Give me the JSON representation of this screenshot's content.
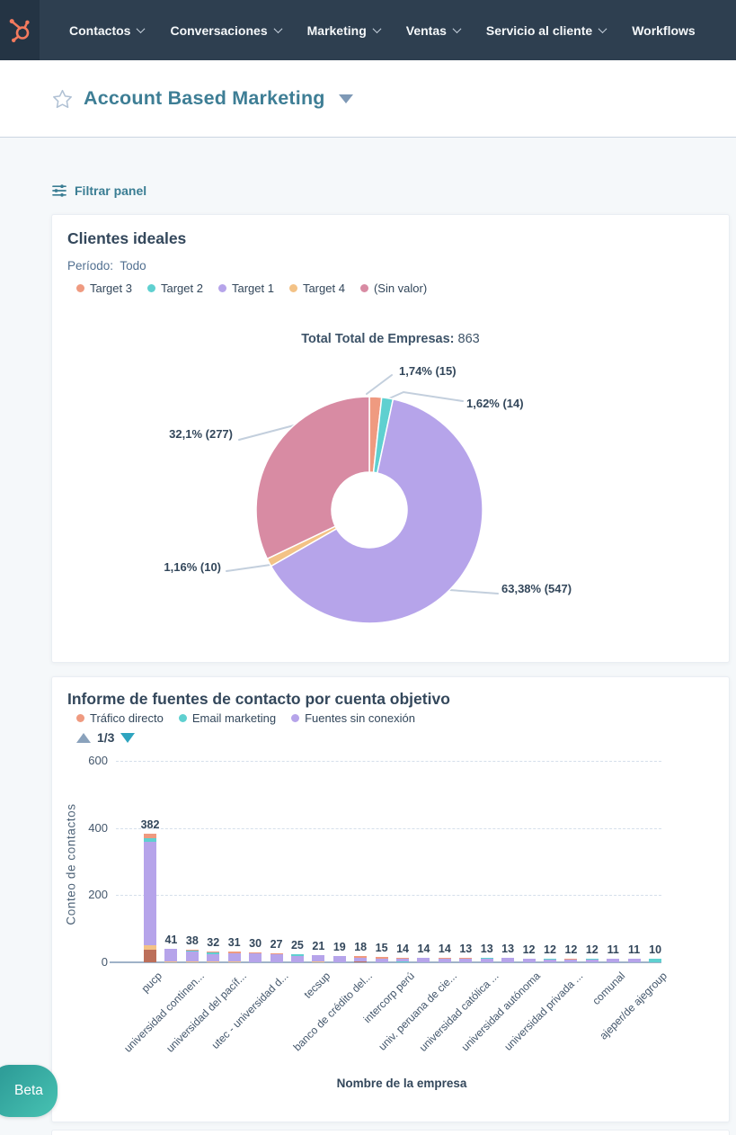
{
  "navbar": {
    "items": [
      {
        "label": "Contactos",
        "has_chevron": true
      },
      {
        "label": "Conversaciones",
        "has_chevron": true
      },
      {
        "label": "Marketing",
        "has_chevron": true
      },
      {
        "label": "Ventas",
        "has_chevron": true
      },
      {
        "label": "Servicio al cliente",
        "has_chevron": true
      },
      {
        "label": "Workflows",
        "has_chevron": false
      }
    ]
  },
  "header": {
    "title": "Account Based Marketing"
  },
  "filter": {
    "label": "Filtrar panel"
  },
  "beta_badge": "Beta",
  "icons": {
    "logo": "hubspot-sprocket",
    "favorite": "star-outline",
    "title_caret": "caret-down",
    "filter": "sliders",
    "nav_chevron": "chevron-down",
    "page_up": "triangle-up",
    "page_down": "triangle-down"
  },
  "colors": {
    "navbar_bg": "#2e3f50",
    "logo_orange": "#f47a5e",
    "page_bg": "#f5f8fa",
    "heading_teal": "#3e7e95",
    "text_navy": "#33475b",
    "beta_teal": "#35afa6"
  },
  "palette": {
    "salmon": "#ef9a80",
    "teal": "#5fd0d0",
    "purple": "#b6a4ea",
    "yellow": "#f3c286",
    "pink": "#d88ba3",
    "rust": "#bc6f5a"
  },
  "chart_data": [
    {
      "type": "pie",
      "subtype": "donut",
      "title": "Clientes ideales",
      "period_label": "Período:",
      "period_value": "Todo",
      "total_label": "Total Total de Empresas:",
      "total_value": "863",
      "legend_position": "top",
      "slices": [
        {
          "name": "Target 3",
          "value": 15,
          "pct": 1.74,
          "callout": "1,74% (15)",
          "color": "#ef9a80"
        },
        {
          "name": "Target 2",
          "value": 14,
          "pct": 1.62,
          "callout": "1,62% (14)",
          "color": "#5fd0d0"
        },
        {
          "name": "Target 1",
          "value": 547,
          "pct": 63.38,
          "callout": "63,38% (547)",
          "color": "#b6a4ea"
        },
        {
          "name": "Target 4",
          "value": 10,
          "pct": 1.16,
          "callout": "1,16% (10)",
          "color": "#f3c286"
        },
        {
          "name": "(Sin valor)",
          "value": 277,
          "pct": 32.1,
          "callout": "32,1% (277)",
          "color": "#d88ba3"
        }
      ]
    },
    {
      "type": "bar",
      "stacked": true,
      "title": "Informe de fuentes de contacto por cuenta objetivo",
      "xlabel": "Nombre de la empresa",
      "ylabel": "Conteo de contactos",
      "ylim": [
        0,
        600
      ],
      "yticks": [
        0,
        200,
        400,
        600
      ],
      "grid": "dashed-horizontal",
      "pagination": "1/3",
      "legend": [
        {
          "name": "Tráfico directo",
          "color": "#ef9a80"
        },
        {
          "name": "Email marketing",
          "color": "#5fd0d0"
        },
        {
          "name": "Fuentes sin conexión",
          "color": "#b6a4ea"
        }
      ],
      "x_tick_every": 2,
      "x_tick_labels": [
        "pucp",
        "universidad continen...",
        "universidad del pacíf...",
        "utec - universidad d...",
        "tecsup",
        "banco de crédito del...",
        "intercorp perú",
        "univ. peruana de cie...",
        "universidad católica ...",
        "universidad autónoma",
        "universidad privada ...",
        "comunal",
        "ajeper/de ajegroup"
      ],
      "bars": [
        {
          "total": 382,
          "segments": [
            [
              "rust",
              38
            ],
            [
              "yellow",
              12
            ],
            [
              "purple",
              310
            ],
            [
              "teal",
              10
            ],
            [
              "salmon",
              12
            ]
          ]
        },
        {
          "total": 41,
          "segments": [
            [
              "yellow",
              2
            ],
            [
              "purple",
              37
            ],
            [
              "salmon",
              2
            ]
          ]
        },
        {
          "total": 38,
          "segments": [
            [
              "yellow",
              4
            ],
            [
              "purple",
              27
            ],
            [
              "teal",
              4
            ],
            [
              "salmon",
              3
            ]
          ]
        },
        {
          "total": 32,
          "segments": [
            [
              "yellow",
              3
            ],
            [
              "purple",
              22
            ],
            [
              "teal",
              4
            ],
            [
              "salmon",
              3
            ]
          ]
        },
        {
          "total": 31,
          "segments": [
            [
              "yellow",
              3
            ],
            [
              "purple",
              24
            ],
            [
              "salmon",
              4
            ]
          ]
        },
        {
          "total": 30,
          "segments": [
            [
              "purple",
              26
            ],
            [
              "salmon",
              4
            ]
          ]
        },
        {
          "total": 27,
          "segments": [
            [
              "purple",
              23
            ],
            [
              "salmon",
              4
            ]
          ]
        },
        {
          "total": 25,
          "segments": [
            [
              "purple",
              20
            ],
            [
              "teal",
              5
            ]
          ]
        },
        {
          "total": 21,
          "segments": [
            [
              "yellow",
              3
            ],
            [
              "purple",
              18
            ]
          ]
        },
        {
          "total": 19,
          "segments": [
            [
              "purple",
              19
            ]
          ]
        },
        {
          "total": 18,
          "segments": [
            [
              "rust",
              3
            ],
            [
              "purple",
              11
            ],
            [
              "salmon",
              4
            ]
          ]
        },
        {
          "total": 15,
          "segments": [
            [
              "purple",
              12
            ],
            [
              "salmon",
              3
            ]
          ]
        },
        {
          "total": 14,
          "segments": [
            [
              "teal",
              4
            ],
            [
              "purple",
              8
            ],
            [
              "salmon",
              2
            ]
          ]
        },
        {
          "total": 14,
          "segments": [
            [
              "purple",
              14
            ]
          ]
        },
        {
          "total": 14,
          "segments": [
            [
              "purple",
              11
            ],
            [
              "salmon",
              3
            ]
          ]
        },
        {
          "total": 13,
          "segments": [
            [
              "purple",
              10
            ],
            [
              "salmon",
              3
            ]
          ]
        },
        {
          "total": 13,
          "segments": [
            [
              "purple",
              10
            ],
            [
              "teal",
              3
            ]
          ]
        },
        {
          "total": 13,
          "segments": [
            [
              "purple",
              13
            ]
          ]
        },
        {
          "total": 12,
          "segments": [
            [
              "purple",
              12
            ]
          ]
        },
        {
          "total": 12,
          "segments": [
            [
              "purple",
              8
            ],
            [
              "teal",
              2
            ],
            [
              "salmon",
              2
            ]
          ]
        },
        {
          "total": 12,
          "segments": [
            [
              "purple",
              9
            ],
            [
              "salmon",
              3
            ]
          ]
        },
        {
          "total": 12,
          "segments": [
            [
              "purple",
              9
            ],
            [
              "teal",
              3
            ]
          ]
        },
        {
          "total": 11,
          "segments": [
            [
              "purple",
              11
            ]
          ]
        },
        {
          "total": 11,
          "segments": [
            [
              "purple",
              11
            ]
          ]
        },
        {
          "total": 10,
          "segments": [
            [
              "teal",
              10
            ]
          ]
        }
      ]
    }
  ]
}
